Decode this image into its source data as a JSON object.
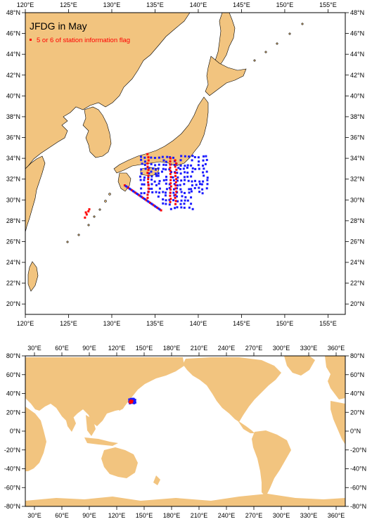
{
  "colors": {
    "land": "#f2c47f",
    "ocean": "#ffffff",
    "station": "#1a1aff",
    "flagged": "#ff0000",
    "frame": "#000000"
  },
  "regional_map": {
    "title": "JFDG in May",
    "legend_label": "5 or 6 of station information flag",
    "lon_range": [
      120,
      157
    ],
    "lat_range": [
      19,
      48
    ],
    "lon_ticks": [
      {
        "value": 120,
        "label": "120°E"
      },
      {
        "value": 125,
        "label": "125°E"
      },
      {
        "value": 130,
        "label": "130°E"
      },
      {
        "value": 135,
        "label": "135°E"
      },
      {
        "value": 140,
        "label": "140°E"
      },
      {
        "value": 145,
        "label": "145°E"
      },
      {
        "value": 150,
        "label": "150°E"
      },
      {
        "value": 155,
        "label": "155°E"
      }
    ],
    "lat_ticks": [
      {
        "value": 20,
        "label": "20°N"
      },
      {
        "value": 22,
        "label": "22°N"
      },
      {
        "value": 24,
        "label": "24°N"
      },
      {
        "value": 26,
        "label": "26°N"
      },
      {
        "value": 28,
        "label": "28°N"
      },
      {
        "value": 30,
        "label": "30°N"
      },
      {
        "value": 32,
        "label": "32°N"
      },
      {
        "value": 34,
        "label": "34°N"
      },
      {
        "value": 36,
        "label": "36°N"
      },
      {
        "value": 38,
        "label": "38°N"
      },
      {
        "value": 40,
        "label": "40°N"
      },
      {
        "value": 42,
        "label": "42°N"
      },
      {
        "value": 44,
        "label": "44°N"
      },
      {
        "value": 46,
        "label": "46°N"
      },
      {
        "value": 48,
        "label": "48°N"
      }
    ]
  },
  "global_map": {
    "lon_range": [
      20,
      370
    ],
    "lat_range": [
      -80,
      80
    ],
    "lon_ticks": [
      {
        "value": 30,
        "label": "30°E"
      },
      {
        "value": 60,
        "label": "60°E"
      },
      {
        "value": 90,
        "label": "90°E"
      },
      {
        "value": 120,
        "label": "120°E"
      },
      {
        "value": 150,
        "label": "150°E"
      },
      {
        "value": 180,
        "label": "180°E"
      },
      {
        "value": 210,
        "label": "210°E"
      },
      {
        "value": 240,
        "label": "240°E"
      },
      {
        "value": 270,
        "label": "270°E"
      },
      {
        "value": 300,
        "label": "300°E"
      },
      {
        "value": 330,
        "label": "330°E"
      },
      {
        "value": 360,
        "label": "360°E"
      }
    ],
    "lat_ticks": [
      {
        "value": 80,
        "label": "80°N"
      },
      {
        "value": 60,
        "label": "60°N"
      },
      {
        "value": 40,
        "label": "40°N"
      },
      {
        "value": 20,
        "label": "20°N"
      },
      {
        "value": 0,
        "label": "0°N"
      },
      {
        "value": -20,
        "label": "-20°N"
      },
      {
        "value": -40,
        "label": "-40°N"
      },
      {
        "value": -60,
        "label": "-60°N"
      },
      {
        "value": -80,
        "label": "-80°N"
      }
    ]
  }
}
